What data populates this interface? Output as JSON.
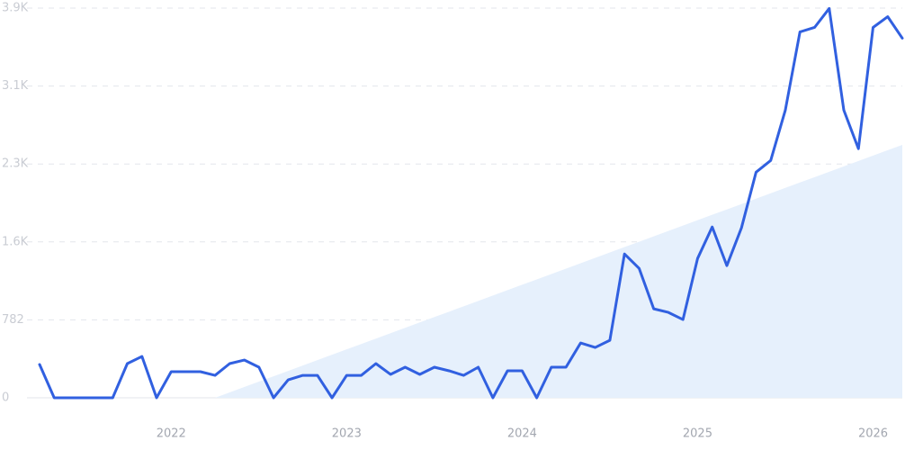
{
  "chart_data": {
    "type": "line",
    "categories": [
      null,
      null,
      null,
      null,
      null,
      null,
      null,
      null,
      null,
      "2022",
      null,
      null,
      null,
      null,
      null,
      null,
      null,
      null,
      null,
      null,
      null,
      "2023",
      null,
      null,
      null,
      null,
      null,
      null,
      null,
      null,
      null,
      null,
      null,
      "2024",
      null,
      null,
      null,
      null,
      null,
      null,
      null,
      null,
      null,
      null,
      null,
      "2025",
      null,
      null,
      null,
      null,
      null,
      null,
      null,
      null,
      null,
      null,
      null,
      "2026",
      null,
      null
    ],
    "series": [
      {
        "color": "#3160e0",
        "values": [
          334,
          0,
          0,
          0,
          0,
          0,
          343,
          415,
          0,
          262,
          262,
          262,
          225,
          343,
          379,
          307,
          0,
          180,
          225,
          225,
          0,
          225,
          225,
          343,
          235,
          307,
          235,
          307,
          271,
          225,
          307,
          0,
          271,
          271,
          0,
          307,
          307,
          550,
          505,
          577,
          1443,
          1299,
          893,
          857,
          785,
          1398,
          1714,
          1326,
          1705,
          2264,
          2381,
          2886,
          3671,
          3716,
          3906,
          2886,
          2499,
          3716,
          3824,
          3608
        ]
      },
      {
        "color": "#e6f0fc",
        "fill": true,
        "values": [
          null,
          null,
          null,
          null,
          null,
          null,
          null,
          null,
          null,
          null,
          null,
          null,
          0,
          54,
          108,
          162,
          216,
          270,
          324,
          378,
          432,
          486,
          540,
          594,
          648,
          702,
          756,
          810,
          864,
          918,
          972,
          1026,
          1080,
          1134,
          1188,
          1242,
          1296,
          1350,
          1404,
          1458,
          1512,
          1566,
          1620,
          1674,
          1728,
          1782,
          1836,
          1890,
          1944,
          1998,
          2052,
          2106,
          2160,
          2214,
          2268,
          2322,
          2376,
          2430,
          2484,
          2538
        ]
      }
    ],
    "ylim": [
      0,
      3910
    ],
    "yticks": [
      0,
      782,
      {
        "value": 1564,
        "label": "1.6K"
      },
      {
        "value": 2346,
        "label": "2.3K"
      },
      {
        "value": 3128,
        "label": "3.1K"
      },
      {
        "value": 3910,
        "label": "3.9K"
      }
    ],
    "grid": true
  }
}
